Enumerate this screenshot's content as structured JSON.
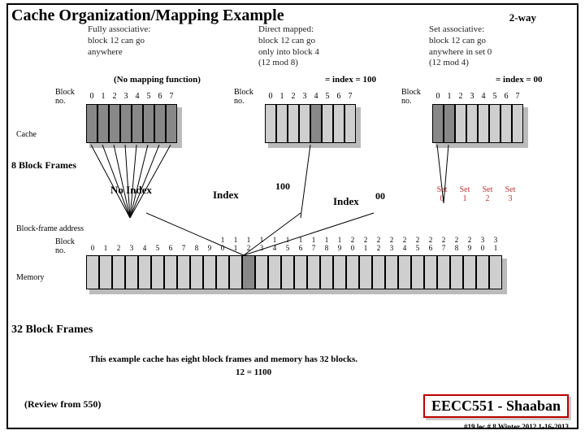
{
  "title": {
    "text": "Cache Organization/Mapping Example",
    "fontsize": 20
  },
  "two_way": "2-way",
  "columns": {
    "fully": "Fully associative:\nblock 12 can go\nanywhere",
    "direct": "Direct mapped:\nblock 12 can go\nonly into block 4\n(12 mod 8)",
    "setassoc": "Set associative:\nblock 12 can go\nanywhere in set 0\n(12 mod 4)"
  },
  "annotations": {
    "no_mapping": "(No mapping function)",
    "idx100": "= index = 100",
    "idx00": "= index = 00"
  },
  "block_no_label": "Block\nno.",
  "block_digits": [
    "0",
    "1",
    "2",
    "3",
    "4",
    "5",
    "6",
    "7"
  ],
  "cache_label": "Cache",
  "eight_frames": "8 Block Frames",
  "labels": {
    "no_index": "No Index",
    "index_a": "Index",
    "hundred": "100",
    "index_b": "Index",
    "zeroes": "00"
  },
  "sets": [
    "Set 0",
    "Set 1",
    "Set 2",
    "Set 3"
  ],
  "bfa": "Block-frame address",
  "mem_block_no": "Block\nno.",
  "mem_tens": [
    "",
    "",
    "",
    "",
    "",
    "",
    "",
    "",
    "",
    "",
    "1",
    "1",
    "1",
    "1",
    "1",
    "1",
    "1",
    "1",
    "1",
    "1",
    "2",
    "2",
    "2",
    "2",
    "2",
    "2",
    "2",
    "2",
    "2",
    "2",
    "3",
    "3"
  ],
  "mem_ones": [
    "0",
    "1",
    "2",
    "3",
    "4",
    "5",
    "6",
    "7",
    "8",
    "9",
    "0",
    "1",
    "2",
    "3",
    "4",
    "5",
    "6",
    "7",
    "8",
    "9",
    "0",
    "1",
    "2",
    "3",
    "4",
    "5",
    "6",
    "7",
    "8",
    "9",
    "0",
    "1"
  ],
  "mem_label": "Memory",
  "thirty_two": "32 Block Frames",
  "caption": "This example cache has eight block frames and memory has 32 blocks.",
  "binary": "12 =  1100",
  "review": "(Review from 550)",
  "eecc": "EECC551 - Shaaban",
  "footer": "#19   lec # 8   Winter 2012  1-16-2013",
  "style": {
    "cache_cell_w": 14,
    "cache_cell_h": 48,
    "highlight_fully": [
      0,
      1,
      2,
      3,
      4,
      5,
      6,
      7
    ],
    "highlight_direct": [
      4
    ],
    "highlight_set": [
      0,
      1
    ],
    "mem_highlight": [
      12
    ],
    "colors": {
      "cell": "#cfcfcf",
      "hl": "#888888",
      "border": "#000000",
      "red": "#b00000"
    }
  }
}
